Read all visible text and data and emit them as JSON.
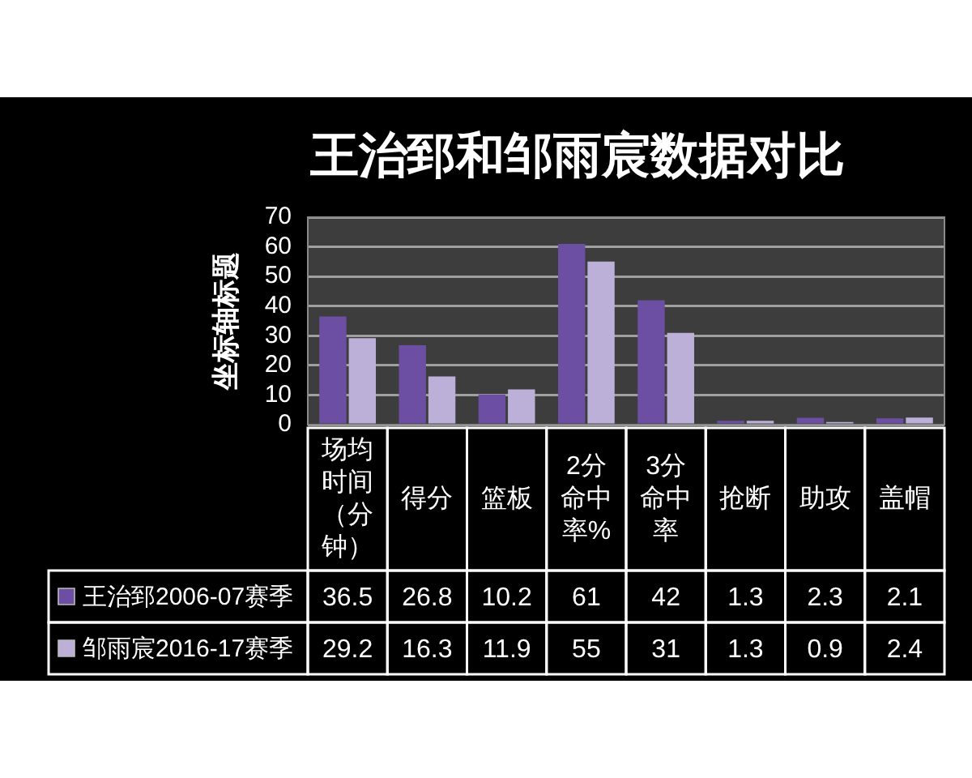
{
  "chart_data": {
    "type": "bar",
    "title": "王治郅和邹雨宸数据对比",
    "ylabel": "坐标轴标题",
    "categories": [
      "场均时间（分钟）",
      "得分",
      "篮板",
      "2分命中率%",
      "3分命中率",
      "抢断",
      "助攻",
      "盖帽"
    ],
    "series": [
      {
        "name": "王治郅2006-07赛季",
        "color": "#6c4fa3",
        "values": [
          36.5,
          26.8,
          10.2,
          61,
          42,
          1.3,
          2.3,
          2.1
        ]
      },
      {
        "name": "邹雨宸2016-17赛季",
        "color": "#bcb0d9",
        "values": [
          29.2,
          16.3,
          11.9,
          55,
          31,
          1.3,
          0.9,
          2.4
        ]
      }
    ],
    "ylim": [
      0,
      70
    ],
    "yticks": [
      0,
      10,
      20,
      30,
      40,
      50,
      60,
      70
    ],
    "grid": "y",
    "legend": "bottom",
    "data_labels": true
  }
}
